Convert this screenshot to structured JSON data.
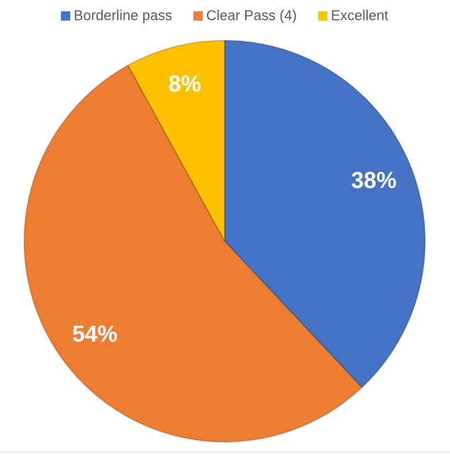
{
  "chart_data": {
    "type": "pie",
    "categories": [
      "Borderline pass",
      "Clear Pass (4)",
      "Excellent"
    ],
    "values": [
      38,
      54,
      8
    ],
    "value_labels": [
      "38%",
      "54%",
      "8%"
    ],
    "colors": [
      "#4472c4",
      "#ed7d31",
      "#ffc000"
    ],
    "legend": "top"
  }
}
